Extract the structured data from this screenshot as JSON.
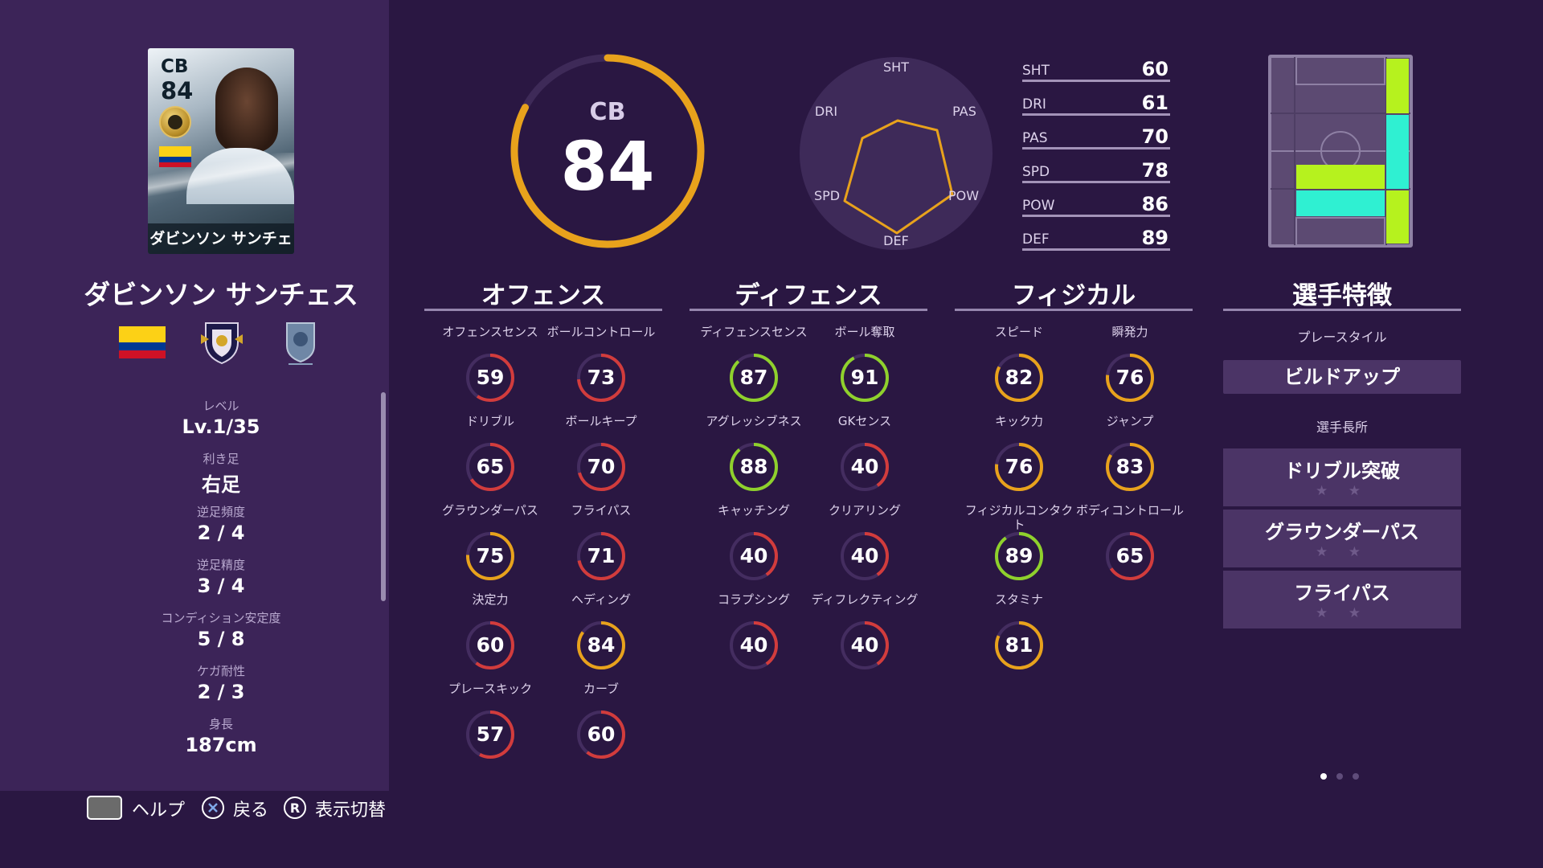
{
  "player": {
    "name": "ダビンソン サンチェス",
    "position": "CB",
    "overall": "84",
    "card_name": "ダビンソン サンチェス"
  },
  "info": [
    {
      "label": "レベル",
      "value": "Lv.1/35"
    },
    {
      "label": "利き足",
      "value": "右足"
    },
    {
      "label": "逆足頻度",
      "value": "2 / 4"
    },
    {
      "label": "逆足精度",
      "value": "3 / 4"
    },
    {
      "label": "コンディション安定度",
      "value": "5 / 8"
    },
    {
      "label": "ケガ耐性",
      "value": "2 / 3"
    },
    {
      "label": "身長",
      "value": "187cm"
    }
  ],
  "radar": {
    "labels": {
      "sht": "SHT",
      "pas": "PAS",
      "pow": "POW",
      "def": "DEF",
      "spd": "SPD",
      "dri": "DRI"
    }
  },
  "summary": [
    {
      "key": "SHT",
      "value": "60"
    },
    {
      "key": "DRI",
      "value": "61"
    },
    {
      "key": "PAS",
      "value": "70"
    },
    {
      "key": "SPD",
      "value": "78"
    },
    {
      "key": "POW",
      "value": "86"
    },
    {
      "key": "DEF",
      "value": "89"
    }
  ],
  "sections": {
    "offense": {
      "title": "オフェンス",
      "stats": [
        {
          "label": "オフェンスセンス",
          "value": "59"
        },
        {
          "label": "ボールコントロール",
          "value": "73"
        },
        {
          "label": "ドリブル",
          "value": "65"
        },
        {
          "label": "ボールキープ",
          "value": "70"
        },
        {
          "label": "グラウンダーパス",
          "value": "75"
        },
        {
          "label": "フライパス",
          "value": "71"
        },
        {
          "label": "決定力",
          "value": "60"
        },
        {
          "label": "ヘディング",
          "value": "84"
        },
        {
          "label": "プレースキック",
          "value": "57"
        },
        {
          "label": "カーブ",
          "value": "60"
        }
      ]
    },
    "defense": {
      "title": "ディフェンス",
      "stats": [
        {
          "label": "ディフェンスセンス",
          "value": "87"
        },
        {
          "label": "ボール奪取",
          "value": "91"
        },
        {
          "label": "アグレッシブネス",
          "value": "88"
        },
        {
          "label": "GKセンス",
          "value": "40"
        },
        {
          "label": "キャッチング",
          "value": "40"
        },
        {
          "label": "クリアリング",
          "value": "40"
        },
        {
          "label": "コラプシング",
          "value": "40"
        },
        {
          "label": "ディフレクティング",
          "value": "40"
        }
      ]
    },
    "physical": {
      "title": "フィジカル",
      "stats": [
        {
          "label": "スピード",
          "value": "82"
        },
        {
          "label": "瞬発力",
          "value": "76"
        },
        {
          "label": "キック力",
          "value": "76"
        },
        {
          "label": "ジャンプ",
          "value": "83"
        },
        {
          "label": "フィジカルコンタクト",
          "value": "89"
        },
        {
          "label": "ボディコントロール",
          "value": "65"
        },
        {
          "label": "スタミナ",
          "value": "81"
        }
      ]
    },
    "traits": {
      "title": "選手特徴",
      "playstyle_label": "プレースタイル",
      "playstyle": "ビルドアップ",
      "skills_label": "選手長所",
      "skills": [
        {
          "name": "ドリブル突破",
          "stars": "★ ★"
        },
        {
          "name": "グラウンダーパス",
          "stars": "★ ★"
        },
        {
          "name": "フライパス",
          "stars": "★ ★"
        }
      ]
    }
  },
  "footer": {
    "help": "ヘルプ",
    "back": "戻る",
    "toggle": "表示切替",
    "r_glyph": "R"
  },
  "colors": {
    "background": "#2a1742",
    "panel": "#3c2458",
    "ring_red": "#d23c3c",
    "ring_orange": "#e8a21c",
    "ring_green": "#8fd12c",
    "pitch_yellowgreen": "#b6f21e",
    "pitch_cyan": "#2ff0d2"
  }
}
